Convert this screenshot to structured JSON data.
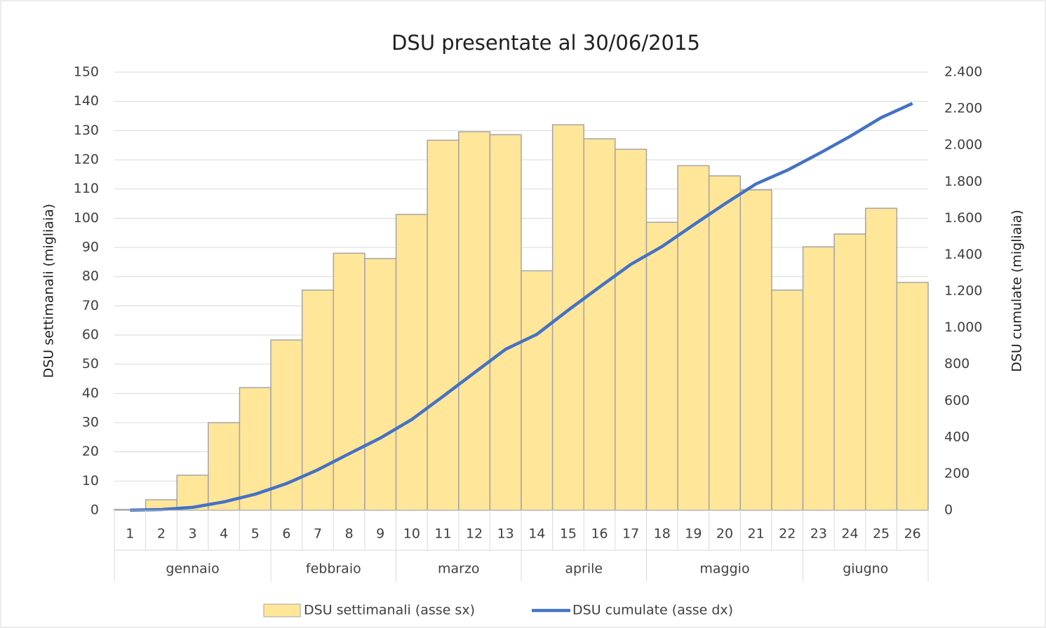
{
  "chart_data": {
    "type": "bar-line",
    "title": "DSU presentate al 30/06/2015",
    "y_label": "DSU settimanali (migliaia)",
    "y2_label": "DSU cumulate (migliaia)",
    "categories": [
      "1",
      "2",
      "3",
      "4",
      "5",
      "6",
      "7",
      "8",
      "9",
      "10",
      "11",
      "12",
      "13",
      "14",
      "15",
      "16",
      "17",
      "18",
      "19",
      "20",
      "21",
      "22",
      "23",
      "24",
      "25",
      "26"
    ],
    "category_groups": [
      {
        "label": "gennaio",
        "span": 5
      },
      {
        "label": "febbraio",
        "span": 4
      },
      {
        "label": "marzo",
        "span": 4
      },
      {
        "label": "aprile",
        "span": 4
      },
      {
        "label": "maggio",
        "span": 5
      },
      {
        "label": "giugno",
        "span": 4
      }
    ],
    "series": [
      {
        "name": "DSU settimanali (asse sx)",
        "type": "bar",
        "color": "#ffe699",
        "values": [
          0.3,
          3.6,
          12,
          30,
          42,
          58.3,
          75.4,
          88,
          86.2,
          101.3,
          126.7,
          129.6,
          128.6,
          82,
          132,
          127.2,
          123.6,
          98.6,
          118,
          114.5,
          109.7,
          75.4,
          90.2,
          94.6,
          103.4,
          78
        ]
      },
      {
        "name": "DSU cumulate (asse dx)",
        "type": "line",
        "axis": "y2",
        "color": "#4472c4",
        "values": [
          0.3,
          3.9,
          15.9,
          45.9,
          87.9,
          146.2,
          221.6,
          309.6,
          395.8,
          497.1,
          623.8,
          753.4,
          882,
          964,
          1096,
          1223,
          1347,
          1445,
          1563,
          1678,
          1788,
          1863,
          1953,
          2048,
          2151,
          2229
        ]
      }
    ],
    "ylim": [
      0,
      150
    ],
    "yticks": [
      0,
      10,
      20,
      30,
      40,
      50,
      60,
      70,
      80,
      90,
      100,
      110,
      120,
      130,
      140,
      150
    ],
    "y2lim": [
      0,
      2400
    ],
    "y2ticks": [
      0,
      200,
      400,
      600,
      800,
      {
        "value": 1000,
        "label": "1.000"
      },
      {
        "value": 1200,
        "label": "1.200"
      },
      {
        "value": 1400,
        "label": "1.400"
      },
      {
        "value": 1600,
        "label": "1.600"
      },
      {
        "value": 1800,
        "label": "1.800"
      },
      {
        "value": 2000,
        "label": "2.000"
      },
      {
        "value": 2200,
        "label": "2.200"
      },
      {
        "value": 2400,
        "label": "2.400"
      }
    ],
    "grid": true,
    "legend": "bottom"
  }
}
